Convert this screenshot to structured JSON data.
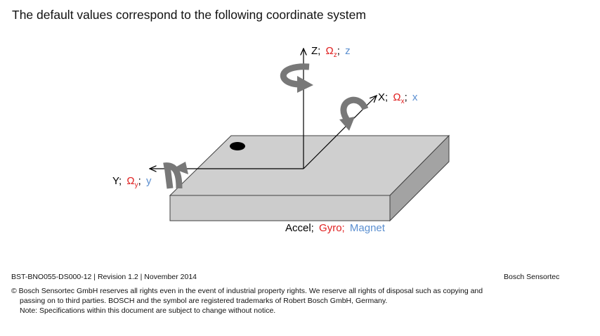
{
  "title": "The default values correspond to the following coordinate system",
  "axes": {
    "z": {
      "name": "Z;",
      "gyro": "Ω",
      "gyro_sub": "z",
      "sep": ";",
      "mag": "z"
    },
    "x": {
      "name": "X;",
      "gyro": "Ω",
      "gyro_sub": "x",
      "sep": ";",
      "mag": "x"
    },
    "y": {
      "name": "Y;",
      "gyro": "Ω",
      "gyro_sub": "y",
      "sep": ";",
      "mag": "y"
    }
  },
  "legend": {
    "accel": "Accel;",
    "gyro": "Gyro;",
    "magnet": "Magnet"
  },
  "colors": {
    "gyro": "#e02020",
    "magnet": "#5b8fd0",
    "board_top": "#cfcfcf",
    "board_front": "#cccccc",
    "board_side": "#a3a3a3",
    "rotation_arrow": "#777777"
  },
  "footer": {
    "doc_id": "BST-BNO055-DS000-12 | Revision 1.2 | November 2014",
    "company": "Bosch Sensortec",
    "copyright_line1": "© Bosch Sensortec GmbH reserves all rights even in the event of industrial property rights. We reserve all rights of disposal such as copying and",
    "copyright_line2": "passing on to third parties. BOSCH and the symbol are registered trademarks of Robert Bosch GmbH, Germany.",
    "copyright_line3": "Note: Specifications within this document are subject to change without notice."
  }
}
